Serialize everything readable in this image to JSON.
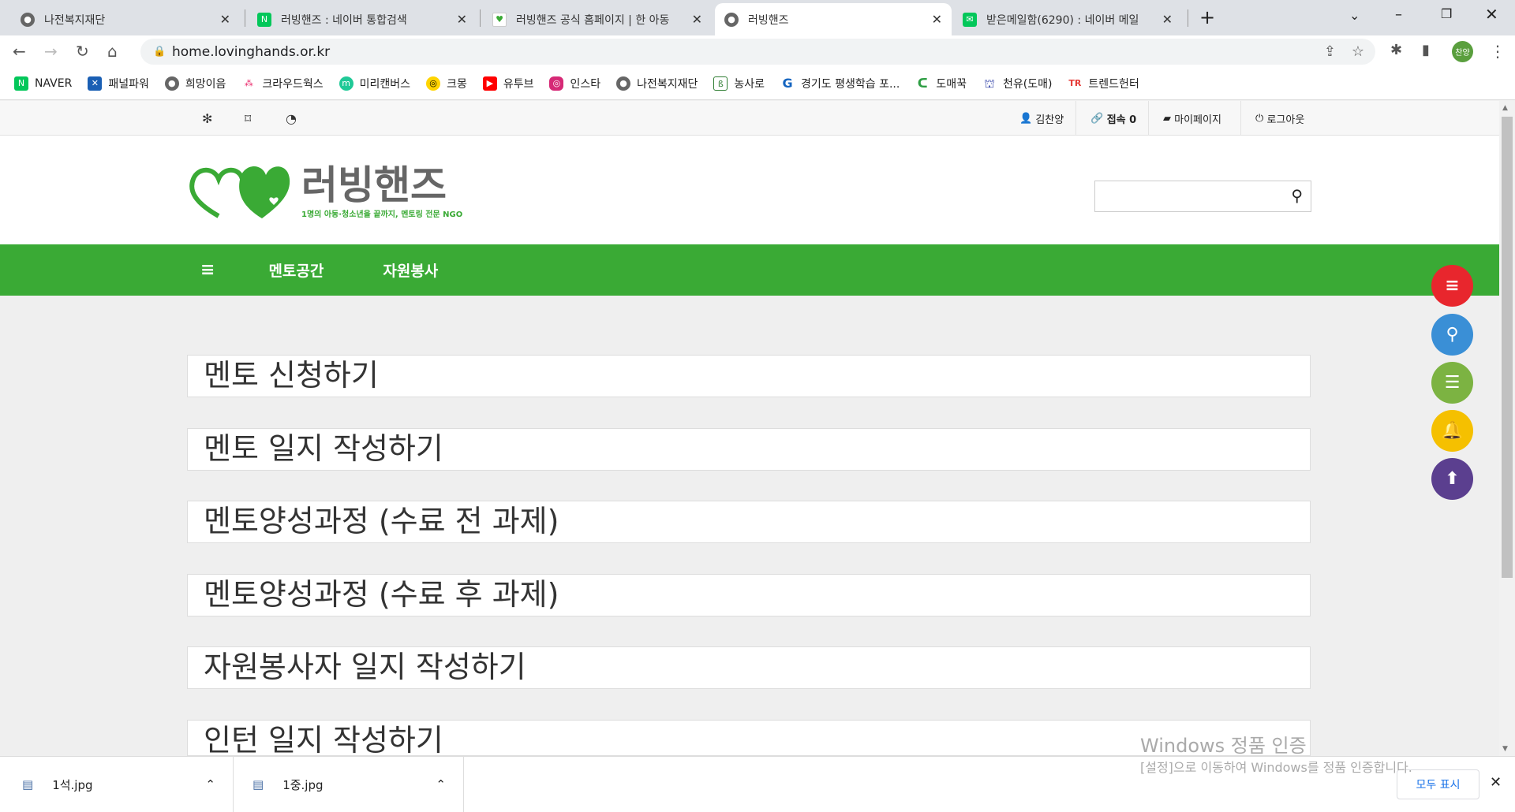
{
  "browser": {
    "tabs": [
      {
        "title": "나전복지재단",
        "icon": "globe-icon"
      },
      {
        "title": "러빙핸즈 : 네이버 통합검색",
        "icon": "naver-icon"
      },
      {
        "title": "러빙핸즈 공식 홈페이지 | 한 아동",
        "icon": "site-icon"
      },
      {
        "title": "러빙핸즈",
        "icon": "globe-icon",
        "active": true
      },
      {
        "title": "받은메일함(6290) : 네이버 메일",
        "icon": "mail-icon"
      }
    ],
    "url": "home.lovinghands.or.kr",
    "profile": "찬양",
    "bookmarks": [
      "NAVER",
      "패널파워",
      "희망이음",
      "크라우드웍스",
      "미리캔버스",
      "크몽",
      "유투브",
      "인스타",
      "나전복지재단",
      "농사로",
      "경기도 평생학습 포...",
      "도매꾹",
      "천유(도매)",
      "트렌드헌터"
    ]
  },
  "util": {
    "user": "김찬양",
    "visits": "접속 0",
    "mypage": "마이페이지",
    "logout": "로그아웃"
  },
  "logo": {
    "name": "러빙핸즈",
    "tagline": "1명의 아동·청소년을 끝까지, 멘토링 전문 NGO"
  },
  "search": {
    "placeholder": ""
  },
  "nav": {
    "items": [
      "멘토공간",
      "자원봉사"
    ]
  },
  "list": [
    "멘토 신청하기",
    "멘토 일지 작성하기",
    "멘토양성과정 (수료 전 과제)",
    "멘토양성과정 (수료 후 과제)",
    "자원봉사자 일지 작성하기",
    "인턴 일지 작성하기"
  ],
  "fabs": [
    {
      "icon": "menu-icon",
      "color": "#e8262d"
    },
    {
      "icon": "search-icon",
      "color": "#3a8fd6"
    },
    {
      "icon": "list-icon",
      "color": "#7cb342"
    },
    {
      "icon": "bell-icon",
      "color": "#f5c000"
    },
    {
      "icon": "arrow-up-icon",
      "color": "#5b3f8f"
    }
  ],
  "watermark": {
    "title": "Windows 정품 인증",
    "sub": "[설정]으로 이동하여 Windows를 정품 인증합니다."
  },
  "downloads": {
    "files": [
      "1석.jpg",
      "1중.jpg"
    ],
    "show_all": "모두 표시"
  },
  "colors": {
    "brand_green": "#3aaa35"
  }
}
